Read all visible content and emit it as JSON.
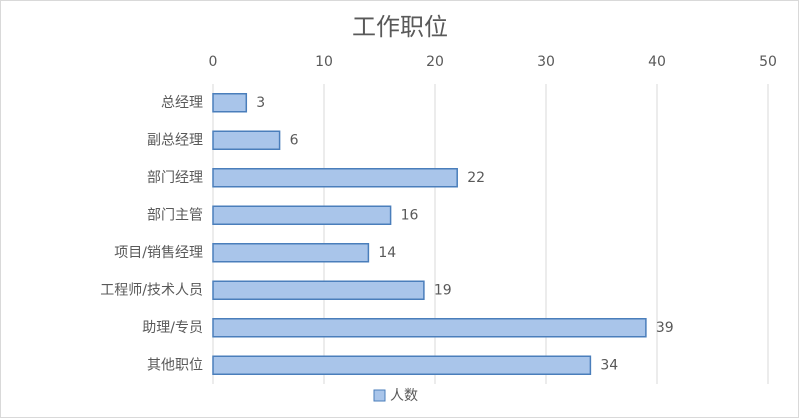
{
  "chart_data": {
    "type": "bar",
    "orientation": "horizontal",
    "title": "工作职位",
    "categories": [
      "总经理",
      "副总经理",
      "部门经理",
      "部门主管",
      "项目/销售经理",
      "工程师/技术人员",
      "助理/专员",
      "其他职位"
    ],
    "series": [
      {
        "name": "人数",
        "color": "#a9c5ea",
        "edge_color": "#4a7ebb",
        "values": [
          3,
          6,
          22,
          16,
          14,
          19,
          39,
          34
        ]
      }
    ],
    "xlim": [
      0,
      50
    ],
    "xticks": [
      0,
      10,
      20,
      30,
      40,
      50
    ],
    "grid": true,
    "legend": "bottom"
  }
}
